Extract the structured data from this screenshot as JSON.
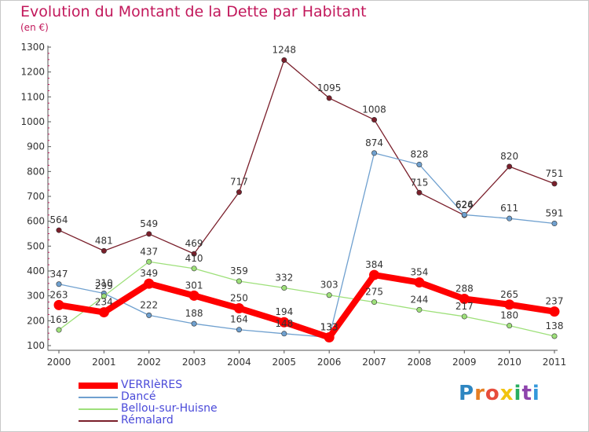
{
  "chart_data": {
    "type": "line",
    "title": "Evolution du Montant de la Dette par Habitant",
    "subtitle": "(en €)",
    "x": [
      "2000",
      "2001",
      "2002",
      "2003",
      "2004",
      "2005",
      "2006",
      "2007",
      "2008",
      "2009",
      "2010",
      "2011"
    ],
    "ylim": [
      100,
      1300
    ],
    "yticks": [
      100,
      200,
      300,
      400,
      500,
      600,
      700,
      800,
      900,
      1000,
      1100,
      1200,
      1300
    ],
    "grid": false,
    "legend_position": "bottom-left",
    "series": [
      {
        "name": "Rémalard",
        "color": "#7a1f2b",
        "values": [
          564,
          481,
          549,
          469,
          717,
          1248,
          1095,
          1008,
          715,
          624,
          820,
          751
        ]
      },
      {
        "name": "Dancé",
        "color": "#6fa0cf",
        "values": [
          347,
          310,
          222,
          188,
          164,
          148,
          133,
          874,
          828,
          626,
          611,
          591
        ]
      },
      {
        "name": "Bellou-sur-Huisne",
        "color": "#9ee07a",
        "values": [
          163,
          299,
          437,
          410,
          359,
          332,
          303,
          275,
          244,
          217,
          180,
          138
        ]
      },
      {
        "name": "VERRIèRES",
        "color": "#ff0000",
        "values": [
          263,
          234,
          349,
          301,
          250,
          194,
          133,
          384,
          354,
          288,
          265,
          237
        ]
      }
    ]
  },
  "legend": [
    {
      "label": "VERRIèRES",
      "color": "#ff0000",
      "width": 8
    },
    {
      "label": "Dancé",
      "color": "#6fa0cf",
      "width": 2
    },
    {
      "label": "Bellou-sur-Huisne",
      "color": "#9ee07a",
      "width": 2
    },
    {
      "label": "Rémalard",
      "color": "#7a1f2b",
      "width": 2
    }
  ],
  "logo": {
    "text": "Proxiti",
    "colors": [
      "#2e86c1",
      "#e67e22",
      "#e74c3c",
      "#f1c40f",
      "#27ae60",
      "#8e44ad",
      "#3498db"
    ]
  }
}
